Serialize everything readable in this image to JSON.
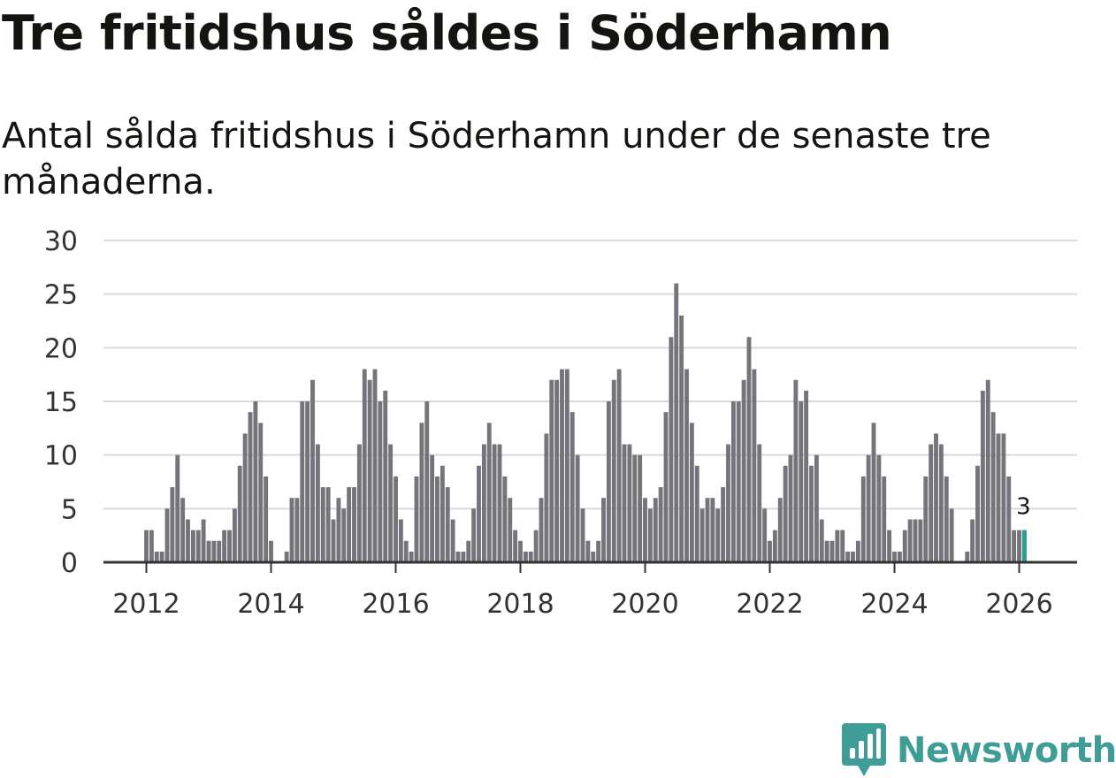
{
  "title": "Tre fritidshus såldes i Söderhamn",
  "subtitle": "Antal sålda fritidshus i Söderhamn under de senaste tre månaderna.",
  "brand": {
    "name": "Newsworthy",
    "color": "#3f9c96",
    "icon": "newsworthy-logo-icon"
  },
  "colors": {
    "bar": "#75747a",
    "highlight": "#2a9d8f",
    "grid": "#d9d9d9",
    "axis": "#333333"
  },
  "chart_data": {
    "type": "bar",
    "title": "Tre fritidshus såldes i Söderhamn",
    "subtitle": "Antal sålda fritidshus i Söderhamn under de senaste tre månaderna.",
    "xlabel": "",
    "ylabel": "",
    "ylim": [
      0,
      30
    ],
    "yticks": [
      0,
      5,
      10,
      15,
      20,
      25,
      30
    ],
    "xticks": [
      "2012",
      "2014",
      "2016",
      "2018",
      "2020",
      "2022",
      "2024",
      "2026"
    ],
    "grid": true,
    "x_start": "2012-01",
    "x_end": "2026-01",
    "frequency": "monthly",
    "values": [
      3,
      3,
      1,
      1,
      5,
      7,
      10,
      6,
      4,
      3,
      3,
      4,
      2,
      2,
      2,
      3,
      3,
      5,
      9,
      12,
      14,
      15,
      13,
      8,
      2,
      0,
      0,
      1,
      6,
      6,
      15,
      15,
      17,
      11,
      7,
      7,
      4,
      6,
      5,
      7,
      7,
      11,
      18,
      17,
      18,
      15,
      16,
      11,
      8,
      4,
      2,
      1,
      8,
      13,
      15,
      10,
      8,
      9,
      7,
      4,
      1,
      1,
      2,
      5,
      9,
      11,
      13,
      11,
      11,
      8,
      6,
      3,
      2,
      1,
      1,
      3,
      6,
      12,
      17,
      17,
      18,
      18,
      14,
      10,
      5,
      2,
      1,
      2,
      6,
      15,
      17,
      18,
      11,
      11,
      10,
      10,
      6,
      5,
      6,
      7,
      14,
      21,
      26,
      23,
      18,
      13,
      9,
      5,
      6,
      6,
      5,
      7,
      11,
      15,
      15,
      17,
      21,
      18,
      11,
      5,
      2,
      3,
      6,
      9,
      10,
      17,
      15,
      16,
      9,
      10,
      4,
      2,
      2,
      3,
      3,
      1,
      1,
      2,
      8,
      10,
      13,
      10,
      8,
      3,
      1,
      1,
      3,
      4,
      4,
      4,
      8,
      11,
      12,
      11,
      8,
      5,
      0,
      0,
      1,
      4,
      9,
      16,
      17,
      14,
      12,
      12,
      8,
      3,
      3,
      3
    ],
    "highlight": {
      "x": "2026-02",
      "value": 3,
      "label": "3"
    }
  }
}
